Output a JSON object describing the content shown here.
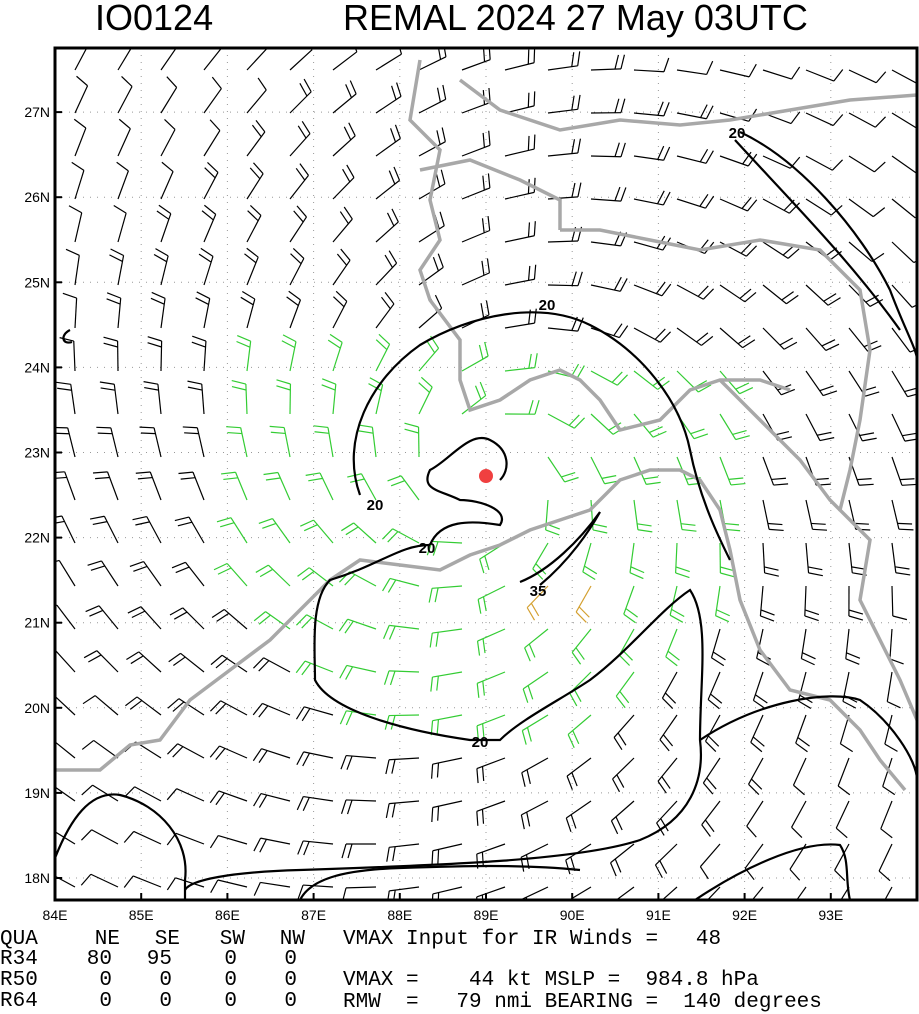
{
  "header": {
    "storm_id": "IO0124",
    "title": "REMAL 2024 27 May 03UTC"
  },
  "map": {
    "lat_labels": [
      "18N",
      "19N",
      "20N",
      "21N",
      "22N",
      "23N",
      "24N",
      "25N",
      "26N",
      "27N"
    ],
    "lon_labels": [
      "84E",
      "85E",
      "86E",
      "87E",
      "88E",
      "89E",
      "90E",
      "91E",
      "92E",
      "93E"
    ],
    "contour_labels": [
      "20",
      "20",
      "20",
      "20",
      "20",
      "35"
    ]
  },
  "table": {
    "header": [
      "QUA",
      "NE",
      "SE",
      "SW",
      "NW"
    ],
    "rows": [
      [
        "R34",
        80,
        95,
        0,
        0
      ],
      [
        "R50",
        0,
        0,
        0,
        0
      ],
      [
        "R64",
        0,
        0,
        0,
        0
      ]
    ]
  },
  "info": {
    "line1": "VMAX Input for IR Winds =   48",
    "line2": "VMAX =    44 kt MSLP =  984.8 hPa",
    "line3": "RMW  =   79 nmi BEARING =  140 degrees"
  }
}
